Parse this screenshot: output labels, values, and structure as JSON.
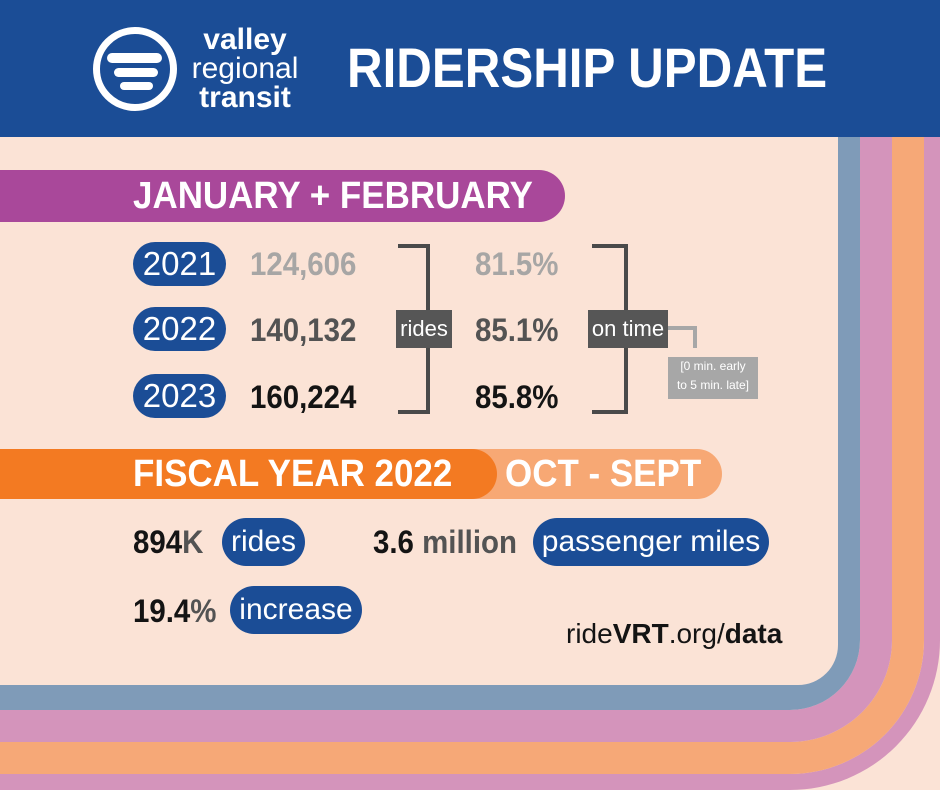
{
  "brand": {
    "logo_lines": [
      "valley",
      "regional",
      "transit"
    ],
    "colors": {
      "navy": "#1b4d96",
      "purple": "#a9489a",
      "orange": "#f37a22",
      "peach": "#f7a874",
      "background": "#fbe3d6",
      "stripe_blue": "#7f9bb8",
      "stripe_pink": "#d494bb",
      "stripe_orange": "#f6a877"
    }
  },
  "header": {
    "title": "RIDERSHIP UPDATE"
  },
  "jan_feb": {
    "heading": "JANUARY + FEBRUARY",
    "rows": [
      {
        "year": "2021",
        "rides": "124,606",
        "on_time": "81.5%"
      },
      {
        "year": "2022",
        "rides": "140,132",
        "on_time": "85.1%"
      },
      {
        "year": "2023",
        "rides": "160,224",
        "on_time": "85.8%"
      }
    ],
    "rides_label": "rides",
    "on_time_label": "on time",
    "on_time_note_line1": "[0 min. early",
    "on_time_note_line2": "to 5 min. late]"
  },
  "fiscal_year": {
    "heading": "FISCAL YEAR 2022",
    "period": "OCT - SEPT",
    "rides_value": "894",
    "rides_unit": "K",
    "rides_label": "rides",
    "miles_value": "3.6",
    "miles_unit": " million",
    "miles_label": "passenger miles",
    "increase_value": "19.4",
    "increase_unit": "%",
    "increase_label": "increase"
  },
  "footer": {
    "url_prefix": "ride",
    "url_bold": "VRT",
    "url_mid": ".org/",
    "url_suffix": "data"
  }
}
